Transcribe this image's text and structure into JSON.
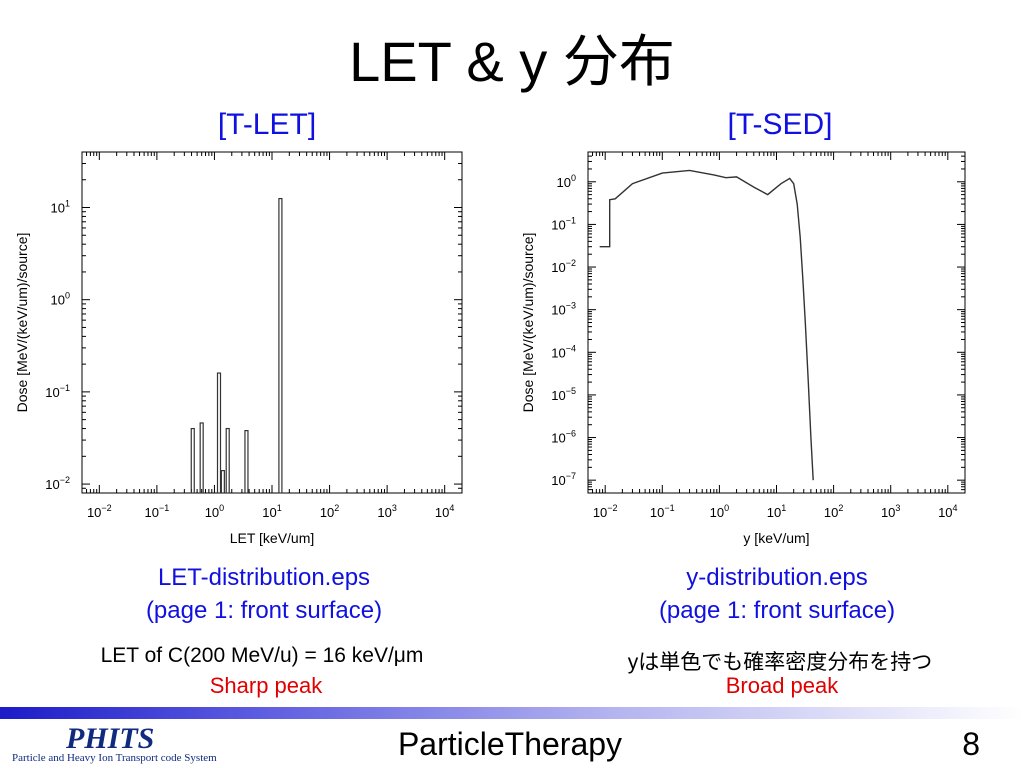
{
  "slide": {
    "title": "LET & y 分布",
    "left": {
      "header": "[T-LET]",
      "caption_line1": "LET-distribution.eps",
      "caption_line2": "(page 1: front surface)",
      "note": "LET of C(200 MeV/u) = 16 keV/μm",
      "peak": "Sharp peak"
    },
    "right": {
      "header": "[T-SED]",
      "caption_line1": "y-distribution.eps",
      "caption_line2": "(page 1: front surface)",
      "note": "yは単色でも確率密度分布を持つ",
      "peak": "Broad peak"
    },
    "footer": {
      "logo": "PHITS",
      "logo_sub": "Particle and Heavy Ion Transport code System",
      "center": "ParticleTherapy",
      "page": "8"
    }
  },
  "chart_data": [
    {
      "type": "bar",
      "xlabel": "LET [keV/um]",
      "ylabel": "Dose [MeV/(keV/um)/source]",
      "xscale": "log",
      "yscale": "log",
      "xlim": [
        0.005,
        20000
      ],
      "ylim": [
        0.008,
        40
      ],
      "xticks": [
        "10^-2",
        "10^-1",
        "10^0",
        "10^1",
        "10^2",
        "10^3",
        "10^4"
      ],
      "yticks": [
        "10^-2",
        "10^-1",
        "10^0",
        "10^1"
      ],
      "bars": [
        {
          "x": 0.42,
          "y": 0.04
        },
        {
          "x": 0.6,
          "y": 0.046
        },
        {
          "x": 1.2,
          "y": 0.16
        },
        {
          "x": 1.4,
          "y": 0.014
        },
        {
          "x": 1.7,
          "y": 0.04
        },
        {
          "x": 3.6,
          "y": 0.038
        },
        {
          "x": 14.0,
          "y": 12.5
        }
      ]
    },
    {
      "type": "line",
      "xlabel": "y [keV/um]",
      "ylabel": "Dose [MeV/(keV/um)/source]",
      "xscale": "log",
      "yscale": "log",
      "xlim": [
        0.005,
        20000
      ],
      "ylim": [
        5e-08,
        5
      ],
      "xticks": [
        "10^-2",
        "10^-1",
        "10^0",
        "10^1",
        "10^2",
        "10^3",
        "10^4"
      ],
      "yticks": [
        "10^-7",
        "10^-6",
        "10^-5",
        "10^-4",
        "10^-3",
        "10^-2",
        "10^-1",
        "10^0"
      ],
      "points": [
        {
          "x": 0.008,
          "y": 0.03
        },
        {
          "x": 0.012,
          "y": 0.03
        },
        {
          "x": 0.012,
          "y": 0.38
        },
        {
          "x": 0.015,
          "y": 0.4
        },
        {
          "x": 0.03,
          "y": 0.9
        },
        {
          "x": 0.1,
          "y": 1.6
        },
        {
          "x": 0.3,
          "y": 1.85
        },
        {
          "x": 0.8,
          "y": 1.45
        },
        {
          "x": 1.3,
          "y": 1.25
        },
        {
          "x": 2.0,
          "y": 1.3
        },
        {
          "x": 4.0,
          "y": 0.75
        },
        {
          "x": 7.0,
          "y": 0.5
        },
        {
          "x": 12.0,
          "y": 0.9
        },
        {
          "x": 17.0,
          "y": 1.2
        },
        {
          "x": 20.0,
          "y": 0.9
        },
        {
          "x": 23.0,
          "y": 0.3
        },
        {
          "x": 26.0,
          "y": 0.05
        },
        {
          "x": 29.0,
          "y": 0.005
        },
        {
          "x": 32.0,
          "y": 0.0005
        },
        {
          "x": 36.0,
          "y": 2e-05
        },
        {
          "x": 40.0,
          "y": 1e-06
        },
        {
          "x": 44.0,
          "y": 1e-07
        }
      ]
    }
  ]
}
